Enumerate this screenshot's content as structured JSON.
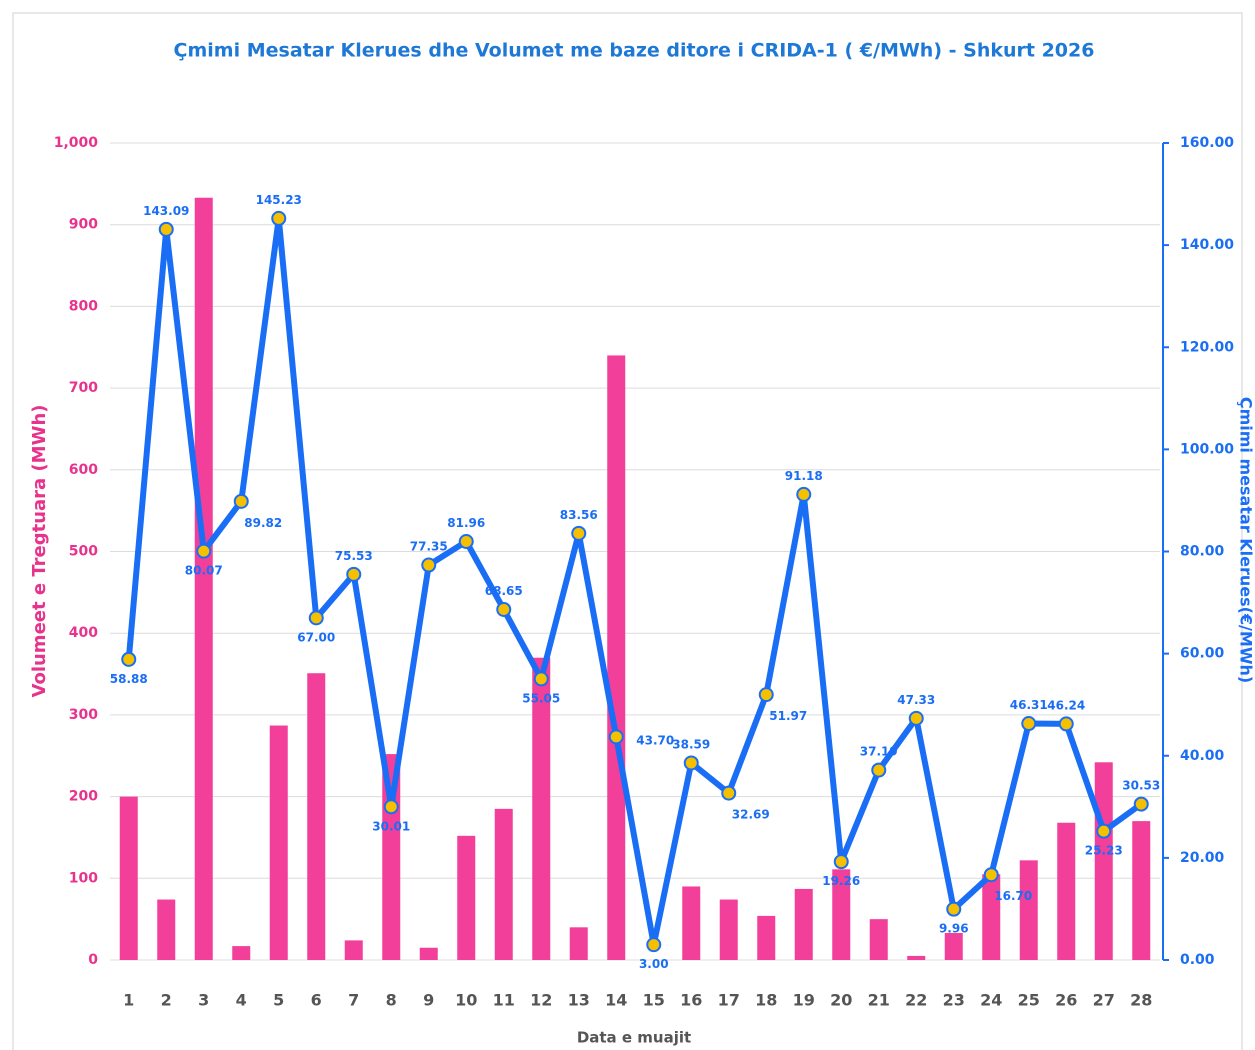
{
  "chart_data": {
    "type": "bar+line",
    "title": "Çmimi Mesatar Klerues dhe Volumet me baze ditore i CRIDA-1 ( €/MWh) - Shkurt 2026",
    "x_label": "Data e muajit",
    "y_label": "Volumeet e Tregtuara (MWh)",
    "y2_label": "Çmimi mesatar Klerues(€/MWh)",
    "categories": [
      "1",
      "2",
      "3",
      "4",
      "5",
      "6",
      "7",
      "8",
      "9",
      "10",
      "11",
      "12",
      "13",
      "14",
      "15",
      "16",
      "17",
      "18",
      "19",
      "20",
      "21",
      "22",
      "23",
      "24",
      "25",
      "26",
      "27",
      "28"
    ],
    "series": [
      {
        "type": "bar",
        "color": "#f23f9a",
        "values": [
          200,
          74,
          933,
          17,
          287,
          351,
          24,
          252,
          15,
          152,
          185,
          370,
          40,
          740,
          0,
          90,
          74,
          54,
          87,
          111,
          50,
          5,
          33,
          105,
          122,
          168,
          242,
          170
        ]
      },
      {
        "type": "line",
        "axis": "y2",
        "color": "#1a6ef5",
        "marker_color": "#f5c000",
        "values": [
          58.88,
          143.09,
          80.07,
          89.82,
          145.23,
          67,
          75.53,
          30.01,
          77.35,
          81.96,
          68.65,
          55.05,
          83.56,
          43.7,
          3,
          38.59,
          32.69,
          51.97,
          91.18,
          19.26,
          37.19,
          47.33,
          9.96,
          16.7,
          46.31,
          46.24,
          25.23,
          30.53
        ],
        "value_labels": [
          "58.88",
          "143.09",
          "80.07",
          "89.82",
          "145.23",
          "67.00",
          "75.53",
          "30.01",
          "77.35",
          "81.96",
          "68.65",
          "55.05",
          "83.56",
          "43.70",
          "3.00",
          "38.59",
          "32.69",
          "51.97",
          "91.18",
          "19.26",
          "37.19",
          "47.33",
          "9.96",
          "16.70",
          "46.31",
          "46.24",
          "25.23",
          "30.53"
        ]
      }
    ],
    "ylim": [
      0,
      1000
    ],
    "yticks": [
      0,
      100,
      200,
      300,
      400,
      500,
      600,
      700,
      800,
      900,
      {
        "value": 1000,
        "label": "1,000"
      }
    ],
    "y2lim": [
      0,
      160
    ],
    "y2ticks": [
      {
        "value": 0,
        "label": "0.00"
      },
      {
        "value": 20,
        "label": "20.00"
      },
      {
        "value": 40,
        "label": "40.00"
      },
      {
        "value": 60,
        "label": "60.00"
      },
      {
        "value": 80,
        "label": "80.00"
      },
      {
        "value": 100,
        "label": "100.00"
      },
      {
        "value": 120,
        "label": "120.00"
      },
      {
        "value": 140,
        "label": "140.00"
      },
      {
        "value": 160,
        "label": "160.00"
      }
    ],
    "grid": true
  }
}
